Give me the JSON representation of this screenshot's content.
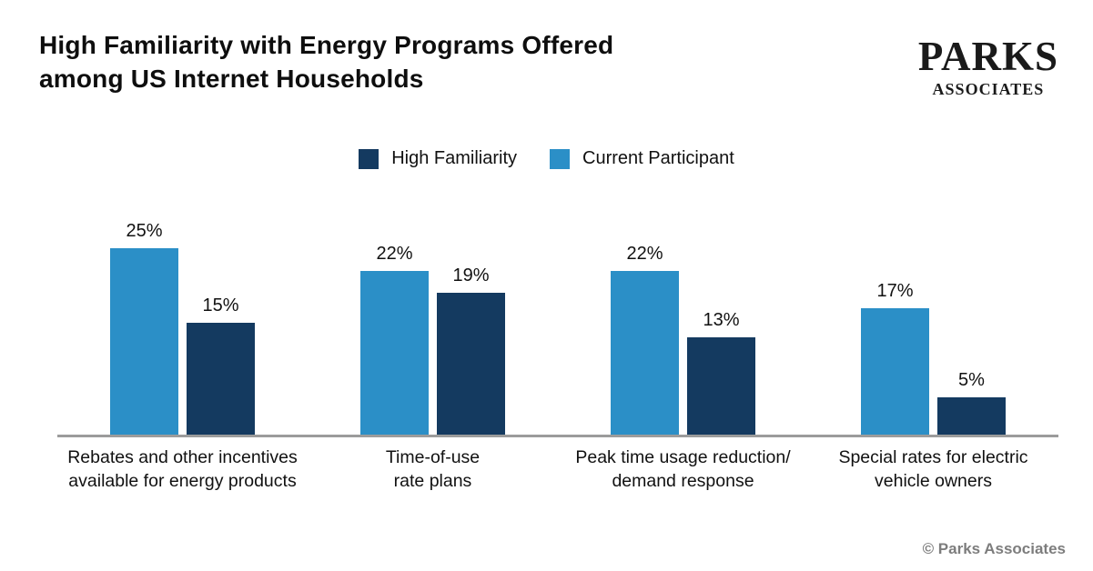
{
  "header": {
    "title": "High Familiarity with Energy Programs Offered\namong US Internet Households",
    "logo": {
      "line1": "PARKS",
      "line2": "ASSOCIATES"
    }
  },
  "chart_data": {
    "type": "bar",
    "title": "High Familiarity with Energy Programs Offered among US Internet Households",
    "categories": [
      "Rebates and other incentives\navailable for energy products",
      "Time-of-use\nrate plans",
      "Peak time usage reduction/\ndemand response",
      "Special rates for electric\nvehicle owners"
    ],
    "series": [
      {
        "name": "Current Participant",
        "color": "#2b8fc7",
        "values": [
          25,
          22,
          22,
          17
        ]
      },
      {
        "name": "High Familiarity",
        "color": "#143a60",
        "values": [
          15,
          19,
          13,
          5
        ]
      }
    ],
    "legend": [
      {
        "label": "High Familiarity",
        "color": "#143a60"
      },
      {
        "label": "Current Participant",
        "color": "#2b8fc7"
      }
    ],
    "value_suffix": "%",
    "ylim": [
      0,
      26
    ],
    "grid": false,
    "legend_position": "top-center",
    "axis_color": "#9c9c9c"
  },
  "footer": {
    "credit": "© Parks Associates"
  }
}
